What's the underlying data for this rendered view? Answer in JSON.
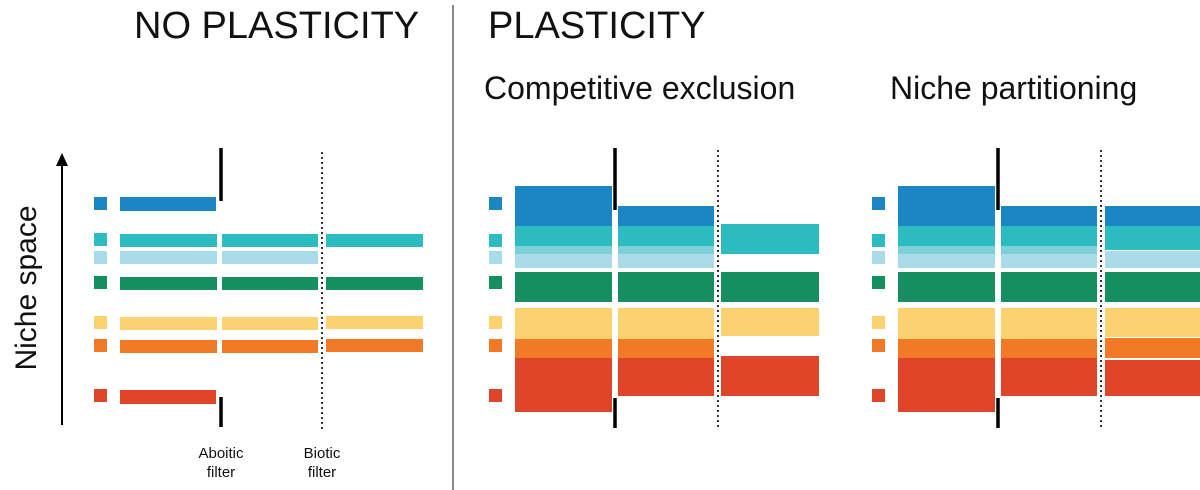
{
  "headings": {
    "no_plasticity": "NO PLASTICITY",
    "plasticity": "PLASTICITY",
    "competitive_exclusion": "Competitive exclusion",
    "niche_partitioning": "Niche partitioning"
  },
  "axis": {
    "ylabel": "Niche space"
  },
  "filters": {
    "abiotic_line1": "Aboitic",
    "abiotic_line2": "filter",
    "biotic_line1": "Biotic",
    "biotic_line2": "filter"
  },
  "colors": {
    "dark_blue": "#1a86c3",
    "teal": "#2cbcbf",
    "light_blue": "#a9dbe8",
    "green": "#158f5f",
    "yellow": "#fcd271",
    "orange": "#f27a26",
    "red": "#de4528"
  }
}
